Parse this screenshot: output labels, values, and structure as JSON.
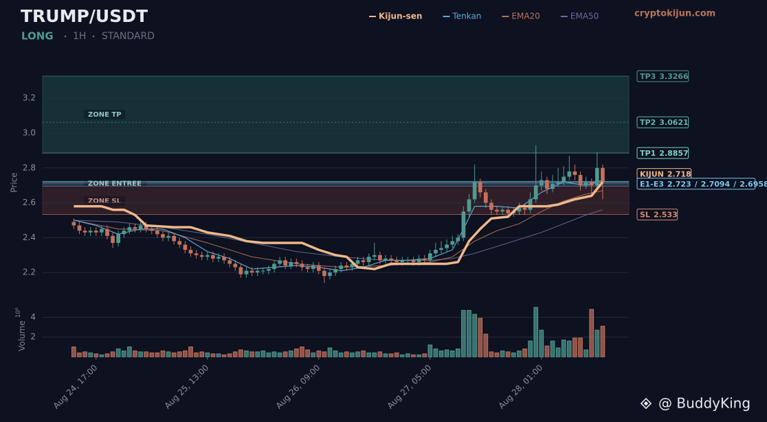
{
  "chart_data": {
    "type": "candlestick",
    "title": "TRUMP/USDT",
    "direction": "LONG",
    "timeframe": "1H",
    "mode": "STANDARD",
    "source": "cryptokijun.com",
    "watermark": "@ BuddyKing",
    "y_label": "Price",
    "volume_label": "Volume",
    "volume_unit": "10⁶",
    "xlim": [
      -9.6,
      95.7
    ],
    "xticks": [
      {
        "value": 0,
        "label": "Aug 24, 17:00"
      },
      {
        "value": 20,
        "label": "Aug 25, 13:00"
      },
      {
        "value": 40,
        "label": "Aug 26, 09:00"
      },
      {
        "value": 60,
        "label": "Aug 27, 05:00"
      },
      {
        "value": 80,
        "label": "Aug 28, 01:00"
      }
    ],
    "ylim": [
      2.11,
      3.37
    ],
    "yticks": [
      2.2,
      2.4,
      2.6,
      2.8,
      {
        "value": 3,
        "label": "3.0"
      },
      3.2
    ],
    "grid": true,
    "volume_ylim": [
      0,
      5
    ],
    "volume_yticks": [
      2,
      4
    ],
    "up_color": "#4f9a90",
    "down_color": "#c4715d",
    "x": [
      -4,
      -3,
      -2,
      -1,
      0,
      1,
      2,
      3,
      4,
      5,
      6,
      7,
      8,
      9,
      10,
      11,
      12,
      13,
      14,
      15,
      16,
      17,
      18,
      19,
      20,
      21,
      22,
      23,
      24,
      25,
      26,
      27,
      28,
      29,
      30,
      31,
      32,
      33,
      34,
      35,
      36,
      37,
      38,
      39,
      40,
      41,
      42,
      43,
      44,
      45,
      46,
      47,
      48,
      49,
      50,
      51,
      52,
      53,
      54,
      55,
      56,
      57,
      58,
      59,
      60,
      61,
      62,
      63,
      64,
      65,
      66,
      67,
      68,
      69,
      70,
      71,
      72,
      73,
      74,
      75,
      76,
      77,
      78,
      79,
      80,
      81,
      82,
      83,
      84,
      85,
      86,
      87,
      88,
      89,
      90,
      91
    ],
    "open": [
      2.49,
      2.47,
      2.44,
      2.43,
      2.44,
      2.43,
      2.45,
      2.41,
      2.37,
      2.42,
      2.44,
      2.46,
      2.45,
      2.47,
      2.45,
      2.44,
      2.42,
      2.4,
      2.41,
      2.38,
      2.36,
      2.33,
      2.31,
      2.3,
      2.29,
      2.3,
      2.28,
      2.29,
      2.27,
      2.25,
      2.23,
      2.19,
      2.21,
      2.2,
      2.21,
      2.21,
      2.22,
      2.25,
      2.27,
      2.24,
      2.26,
      2.25,
      2.23,
      2.22,
      2.24,
      2.21,
      2.18,
      2.2,
      2.22,
      2.24,
      2.23,
      2.25,
      2.27,
      2.26,
      2.29,
      2.3,
      2.27,
      2.28,
      2.27,
      2.26,
      2.27,
      2.27,
      2.26,
      2.28,
      2.27,
      2.31,
      2.33,
      2.34,
      2.36,
      2.38,
      2.4,
      2.55,
      2.62,
      2.72,
      2.66,
      2.6,
      2.56,
      2.55,
      2.56,
      2.54,
      2.55,
      2.57,
      2.56,
      2.62,
      2.7,
      2.73,
      2.68,
      2.71,
      2.72,
      2.75,
      2.78,
      2.76,
      2.7,
      2.72,
      2.7,
      2.8
    ],
    "high": [
      2.51,
      2.49,
      2.46,
      2.46,
      2.46,
      2.47,
      2.47,
      2.43,
      2.44,
      2.46,
      2.48,
      2.48,
      2.49,
      2.49,
      2.47,
      2.46,
      2.44,
      2.43,
      2.43,
      2.4,
      2.38,
      2.35,
      2.33,
      2.32,
      2.32,
      2.32,
      2.31,
      2.31,
      2.29,
      2.27,
      2.25,
      2.23,
      2.23,
      2.23,
      2.23,
      2.24,
      2.27,
      2.29,
      2.29,
      2.28,
      2.28,
      2.27,
      2.25,
      2.26,
      2.26,
      2.23,
      2.22,
      2.24,
      2.26,
      2.26,
      2.27,
      2.29,
      2.29,
      2.31,
      2.37,
      2.32,
      2.3,
      2.3,
      2.29,
      2.29,
      2.29,
      2.29,
      2.3,
      2.3,
      2.33,
      2.37,
      2.38,
      2.39,
      2.41,
      2.42,
      2.58,
      2.65,
      2.82,
      2.74,
      2.68,
      2.62,
      2.58,
      2.58,
      2.58,
      2.57,
      2.6,
      2.59,
      2.66,
      2.93,
      2.78,
      2.75,
      2.76,
      2.8,
      2.81,
      2.87,
      2.82,
      2.78,
      2.75,
      2.74,
      2.89,
      2.82
    ],
    "low": [
      2.45,
      2.42,
      2.41,
      2.41,
      2.41,
      2.41,
      2.39,
      2.34,
      2.35,
      2.4,
      2.42,
      2.43,
      2.43,
      2.43,
      2.42,
      2.4,
      2.38,
      2.38,
      2.36,
      2.34,
      2.31,
      2.29,
      2.28,
      2.27,
      2.27,
      2.26,
      2.26,
      2.25,
      2.23,
      2.21,
      2.17,
      2.17,
      2.18,
      2.18,
      2.19,
      2.19,
      2.2,
      2.23,
      2.22,
      2.22,
      2.23,
      2.21,
      2.2,
      2.2,
      2.19,
      2.14,
      2.16,
      2.18,
      2.2,
      2.21,
      2.21,
      2.23,
      2.24,
      2.24,
      2.27,
      2.25,
      2.25,
      2.25,
      2.24,
      2.24,
      2.25,
      2.24,
      2.24,
      2.25,
      2.25,
      2.29,
      2.31,
      2.32,
      2.34,
      2.36,
      2.38,
      2.52,
      2.6,
      2.63,
      2.57,
      2.53,
      2.53,
      2.53,
      2.52,
      2.52,
      2.53,
      2.53,
      2.54,
      2.6,
      2.67,
      2.65,
      2.66,
      2.69,
      2.7,
      2.73,
      2.73,
      2.67,
      2.68,
      2.65,
      2.68,
      2.62
    ],
    "close": [
      2.47,
      2.44,
      2.43,
      2.44,
      2.43,
      2.45,
      2.41,
      2.37,
      2.42,
      2.44,
      2.46,
      2.45,
      2.47,
      2.45,
      2.44,
      2.42,
      2.4,
      2.41,
      2.38,
      2.36,
      2.33,
      2.31,
      2.3,
      2.29,
      2.3,
      2.28,
      2.29,
      2.27,
      2.25,
      2.23,
      2.19,
      2.21,
      2.2,
      2.21,
      2.21,
      2.22,
      2.25,
      2.27,
      2.24,
      2.26,
      2.25,
      2.23,
      2.22,
      2.24,
      2.21,
      2.18,
      2.2,
      2.22,
      2.24,
      2.23,
      2.25,
      2.27,
      2.26,
      2.29,
      2.3,
      2.27,
      2.28,
      2.27,
      2.26,
      2.27,
      2.27,
      2.26,
      2.28,
      2.27,
      2.31,
      2.33,
      2.34,
      2.36,
      2.38,
      2.4,
      2.55,
      2.62,
      2.72,
      2.66,
      2.6,
      2.56,
      2.55,
      2.56,
      2.54,
      2.55,
      2.57,
      2.56,
      2.62,
      2.7,
      2.73,
      2.68,
      2.71,
      2.72,
      2.75,
      2.78,
      2.76,
      2.7,
      2.72,
      2.7,
      2.8,
      2.72
    ],
    "volume": [
      1.0,
      0.4,
      0.5,
      0.4,
      0.3,
      0.2,
      0.3,
      0.5,
      0.8,
      0.6,
      1.0,
      0.6,
      0.5,
      0.5,
      0.4,
      0.4,
      0.6,
      0.5,
      0.4,
      0.5,
      0.6,
      1.0,
      0.4,
      0.5,
      0.4,
      0.3,
      0.3,
      0.2,
      0.3,
      0.5,
      0.7,
      0.6,
      0.5,
      0.5,
      0.6,
      0.4,
      0.5,
      0.4,
      0.5,
      0.6,
      0.8,
      1.0,
      0.7,
      0.4,
      0.6,
      0.5,
      0.9,
      0.6,
      0.4,
      0.5,
      0.4,
      0.5,
      0.6,
      0.4,
      0.4,
      0.5,
      0.3,
      0.3,
      0.4,
      0.2,
      0.3,
      0.2,
      0.2,
      0.3,
      1.2,
      0.8,
      0.6,
      0.7,
      0.6,
      0.8,
      4.7,
      4.7,
      4.3,
      3.9,
      2.3,
      0.5,
      0.4,
      0.6,
      0.5,
      0.4,
      0.6,
      0.8,
      1.6,
      5.0,
      2.7,
      1.1,
      1.6,
      0.9,
      1.7,
      1.6,
      1.9,
      1.9,
      0.7,
      4.8,
      2.7,
      3.1
    ],
    "series": [
      {
        "name": "Kijun-sen",
        "color": "#f0b88a",
        "x": [
          -4,
          1,
          3,
          5,
          7,
          9,
          14,
          17,
          20,
          24,
          27,
          30,
          37,
          40,
          43,
          45,
          47,
          50,
          53,
          63,
          65,
          67,
          69,
          71,
          74,
          76,
          81,
          83,
          86,
          89,
          91
        ],
        "values": [
          2.58,
          2.58,
          2.56,
          2.56,
          2.53,
          2.47,
          2.46,
          2.46,
          2.43,
          2.41,
          2.38,
          2.37,
          2.37,
          2.33,
          2.3,
          2.29,
          2.23,
          2.22,
          2.25,
          2.25,
          2.26,
          2.38,
          2.45,
          2.51,
          2.52,
          2.58,
          2.58,
          2.59,
          2.62,
          2.64,
          2.72
        ]
      },
      {
        "name": "Tenkan",
        "color": "#5aa9d6",
        "x": [
          -4,
          0,
          4,
          8,
          12,
          16,
          20,
          24,
          28,
          32,
          36,
          40,
          44,
          48,
          52,
          56,
          60,
          64,
          66,
          68,
          72,
          76,
          80,
          84,
          88,
          91
        ],
        "values": [
          2.5,
          2.47,
          2.42,
          2.45,
          2.45,
          2.4,
          2.32,
          2.28,
          2.22,
          2.23,
          2.24,
          2.23,
          2.21,
          2.23,
          2.27,
          2.27,
          2.28,
          2.33,
          2.45,
          2.58,
          2.58,
          2.57,
          2.66,
          2.72,
          2.7,
          2.73
        ]
      },
      {
        "name": "EMA20",
        "color": "#b8735a",
        "x": [
          -4,
          4,
          12,
          20,
          28,
          36,
          44,
          52,
          60,
          64,
          68,
          72,
          76,
          80,
          84,
          88,
          91
        ],
        "values": [
          2.5,
          2.45,
          2.44,
          2.37,
          2.29,
          2.25,
          2.23,
          2.24,
          2.26,
          2.29,
          2.38,
          2.44,
          2.48,
          2.55,
          2.61,
          2.65,
          2.67
        ]
      },
      {
        "name": "EMA50",
        "color": "#6a6c9a",
        "x": [
          -4,
          4,
          12,
          20,
          28,
          36,
          44,
          52,
          60,
          64,
          68,
          72,
          76,
          80,
          84,
          88,
          91
        ],
        "values": [
          2.5,
          2.49,
          2.46,
          2.42,
          2.37,
          2.32,
          2.29,
          2.27,
          2.27,
          2.28,
          2.31,
          2.35,
          2.39,
          2.43,
          2.48,
          2.53,
          2.56
        ]
      }
    ],
    "zones": [
      {
        "name": "ZONE TP",
        "from": 2.8857,
        "to": 3.3266,
        "color": "#1f4a48"
      },
      {
        "name": "ZONE ENTREE",
        "from": 2.6958,
        "to": 2.723,
        "color": "#24506e"
      },
      {
        "name": "ZONE SL",
        "from": 2.533,
        "to": 2.6958,
        "color": "#4a2a30"
      }
    ],
    "levels": [
      {
        "label": "TP3",
        "value": 3.3266,
        "color": "#4f9a90"
      },
      {
        "label": "TP2",
        "value": 3.0621,
        "color": "#5fb8ac"
      },
      {
        "label": "TP1",
        "value": 2.8857,
        "color": "#7fd0c4"
      },
      {
        "label": "KIJUN",
        "value": 2.718,
        "color": "#f0b88a"
      },
      {
        "label": "SL",
        "value": 2.533,
        "color": "#d98a73"
      }
    ],
    "entry": {
      "label": "E1-E3",
      "values": [
        2.723,
        2.7094,
        2.6958
      ],
      "separator": "/",
      "color": "#7cc4ee"
    }
  }
}
